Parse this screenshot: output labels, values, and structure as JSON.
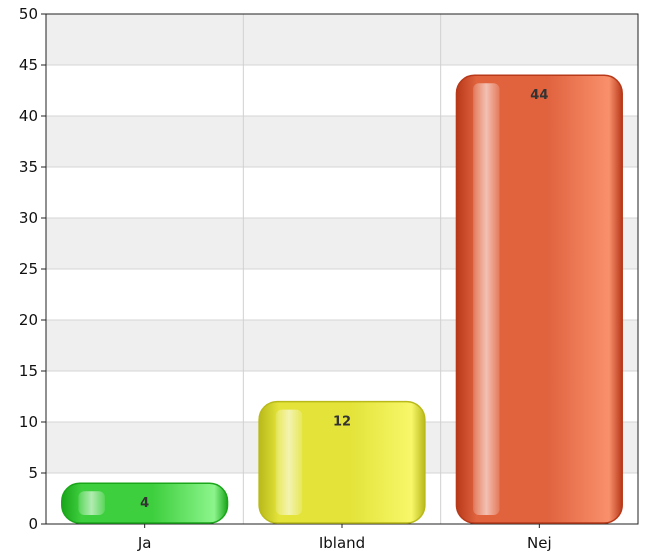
{
  "chart_data": {
    "type": "bar",
    "categories": [
      "Ja",
      "Ibland",
      "Nej"
    ],
    "values": [
      4,
      12,
      44
    ],
    "data_labels": [
      "4",
      "12",
      "44"
    ],
    "title": "",
    "xlabel": "",
    "ylabel": "",
    "ylim": [
      0,
      50
    ],
    "y_ticks": [
      0,
      5,
      10,
      15,
      20,
      25,
      30,
      35,
      40,
      45,
      50
    ],
    "y_tick_labels": [
      "0",
      "5",
      "10",
      "15",
      "20",
      "25",
      "30",
      "35",
      "40",
      "45",
      "50"
    ],
    "grid": true,
    "legend": "none",
    "bar_colors": [
      "#3ecf3e",
      "#e3e33a",
      "#e0633e"
    ],
    "bar_highlight_colors": [
      "#8cf58c",
      "#f7f76a",
      "#f9906c"
    ],
    "bar_edge_colors": [
      "#1aa51a",
      "#b9b91a",
      "#b7391a"
    ],
    "plot_background_bands": [
      "#efefef",
      "#ffffff"
    ]
  }
}
